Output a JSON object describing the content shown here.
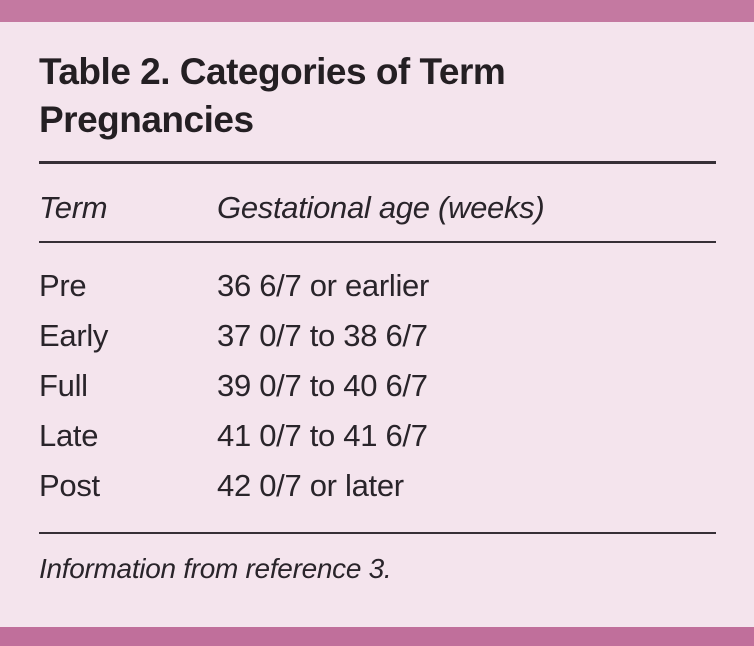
{
  "table": {
    "title": "Table 2. Categories of Term Pregnancies",
    "columns": {
      "term": "Term",
      "gestational_age": "Gestational age (weeks)"
    },
    "rows": [
      {
        "term": "Pre",
        "gestational_age": "36 6/7 or earlier"
      },
      {
        "term": "Early",
        "gestational_age": "37 0/7 to 38 6/7"
      },
      {
        "term": "Full",
        "gestational_age": "39 0/7 to 40 6/7"
      },
      {
        "term": "Late",
        "gestational_age": "41 0/7 to 41 6/7"
      },
      {
        "term": "Post",
        "gestational_age": "42 0/7 or later"
      }
    ],
    "footnote": "Information from reference 3."
  },
  "colors": {
    "top_bar": "#c479a1",
    "bottom_bar": "#c06f9b",
    "background": "#f4e4ed",
    "text": "#29242a",
    "rule": "#362f36"
  }
}
